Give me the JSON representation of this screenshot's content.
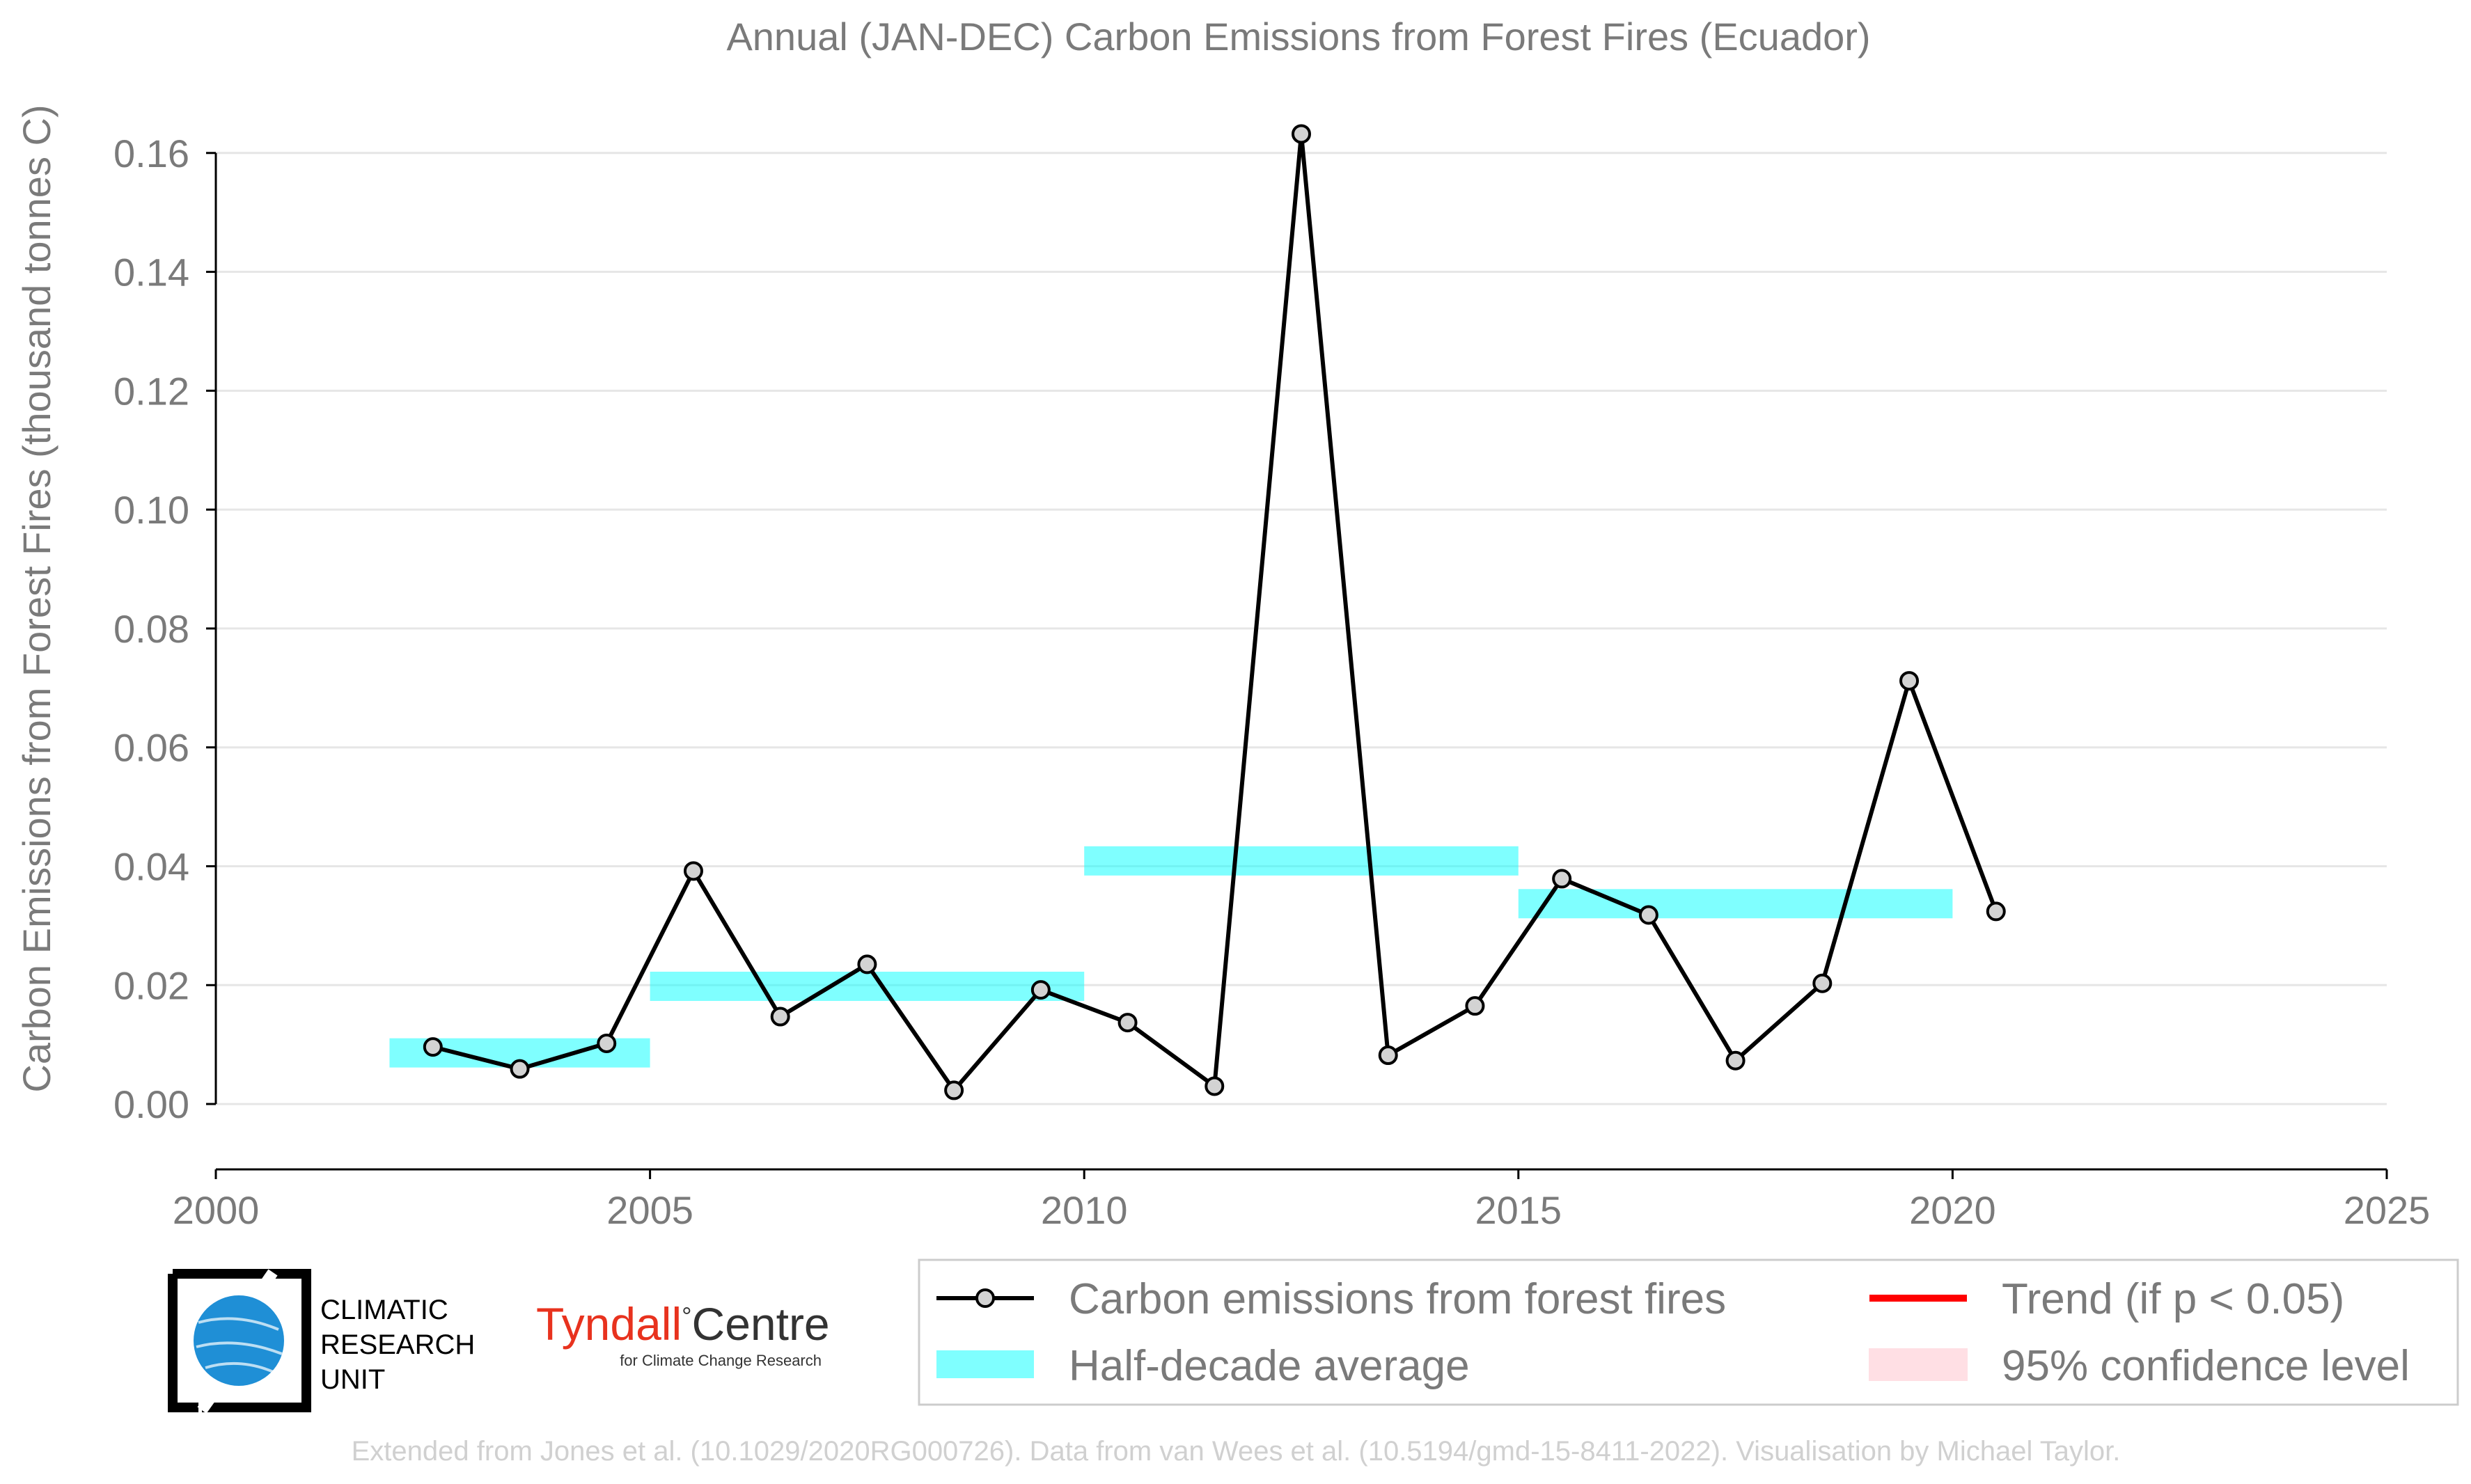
{
  "colors": {
    "series": "#000000",
    "marker_fill": "#d3d3d3",
    "half_decade": "#00ffff",
    "trend": "#ff0000",
    "confidence": "#ffc0cb",
    "grid": "#e6e6e6",
    "text": "#7a7a7a",
    "credit": "#d0d0d0",
    "cru_blue": "#1f8fd6",
    "tyndall_red": "#e8321e"
  },
  "chart_data": {
    "type": "line",
    "title": "Annual (JAN-DEC) Carbon Emissions from Forest Fires (Ecuador)",
    "xlabel": "",
    "ylabel": "Carbon Emissions from Forest Fires (thousand tonnes C)",
    "xlim": [
      2000,
      2025
    ],
    "ylim": [
      -0.011,
      0.167
    ],
    "x_ticks": [
      "2000",
      "2005",
      "2010",
      "2015",
      "2020",
      "2025"
    ],
    "y_ticks": [
      "0.00",
      "0.02",
      "0.04",
      "0.06",
      "0.08",
      "0.10",
      "0.12",
      "0.14",
      "0.16"
    ],
    "grid": true,
    "legend_position": "bottom-right",
    "series": [
      {
        "name": "Carbon emissions from forest fires",
        "x": [
          2002.5,
          2003.5,
          2004.5,
          2005.5,
          2006.5,
          2007.5,
          2008.5,
          2009.5,
          2010.5,
          2011.5,
          2012.5,
          2013.5,
          2014.5,
          2015.5,
          2016.5,
          2017.5,
          2018.5,
          2019.5,
          2020.5
        ],
        "values": [
          0.0096,
          0.0059,
          0.0102,
          0.0392,
          0.0147,
          0.0235,
          0.0023,
          0.0192,
          0.0137,
          0.003,
          0.1632,
          0.0082,
          0.0165,
          0.0379,
          0.0318,
          0.0073,
          0.0203,
          0.0712,
          0.0324
        ]
      }
    ],
    "half_decade_averages": {
      "name": "Half-decade average",
      "periods": [
        {
          "start": 2002,
          "end": 2005,
          "value": 0.0086
        },
        {
          "start": 2005,
          "end": 2010,
          "value": 0.0198
        },
        {
          "start": 2010,
          "end": 2015,
          "value": 0.0409
        },
        {
          "start": 2015,
          "end": 2020,
          "value": 0.0337
        }
      ]
    },
    "legend": [
      {
        "label": "Carbon emissions from forest fires",
        "kind": "line-marker"
      },
      {
        "label": "Trend (if p < 0.05)",
        "kind": "trend-line"
      },
      {
        "label": "Half-decade average",
        "kind": "band"
      },
      {
        "label": "95% confidence level",
        "kind": "confidence"
      }
    ]
  },
  "logos": {
    "cru_lines": [
      "CLIMATIC",
      "RESEARCH",
      "UNIT"
    ],
    "tyndall_name": "Tyndall",
    "tyndall_degree": "°",
    "tyndall_centre": "Centre",
    "tyndall_sub": "for Climate Change Research"
  },
  "credit": "Extended from Jones et al. (10.1029/2020RG000726). Data from van Wees et al. (10.5194/gmd-15-8411-2022). Visualisation by Michael Taylor."
}
